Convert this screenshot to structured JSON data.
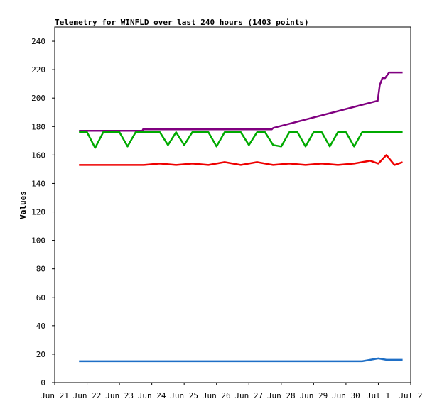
{
  "chart_data": {
    "type": "line",
    "title": "Telemetry for WINFLD over last 240 hours (1403 points)",
    "ylabel": "Values",
    "xlabel": "",
    "ylim": [
      0,
      250
    ],
    "yticks": [
      0,
      20,
      40,
      60,
      80,
      100,
      120,
      140,
      160,
      180,
      200,
      220,
      240
    ],
    "xlim": [
      "2024-06-21",
      "2024-07-02"
    ],
    "xticks": [
      {
        "date": "2024-06-21",
        "label": "Jun 21"
      },
      {
        "date": "2024-06-22",
        "label": "Jun 22"
      },
      {
        "date": "2024-06-23",
        "label": "Jun 23"
      },
      {
        "date": "2024-06-24",
        "label": "Jun 24"
      },
      {
        "date": "2024-06-25",
        "label": "Jun 25"
      },
      {
        "date": "2024-06-26",
        "label": "Jun 26"
      },
      {
        "date": "2024-06-27",
        "label": "Jun 27"
      },
      {
        "date": "2024-06-28",
        "label": "Jun 28"
      },
      {
        "date": "2024-06-29",
        "label": "Jun 29"
      },
      {
        "date": "2024-06-30",
        "label": "Jun 30"
      },
      {
        "date": "2024-07-01",
        "label": "Jul 1"
      },
      {
        "date": "2024-07-02",
        "label": "Jul 2"
      }
    ],
    "grid": false,
    "legend": "none",
    "series": [
      {
        "color": "#800080",
        "x": [
          "2024-06-21T18:00",
          "2024-06-23T17:00",
          "2024-06-23T17:30",
          "2024-06-27T17:00",
          "2024-06-27T18:00",
          "2024-06-30T23:00",
          "2024-06-30T23:30",
          "2024-07-01T01:00",
          "2024-07-01T03:00",
          "2024-07-01T05:00",
          "2024-07-01T08:00",
          "2024-07-01T18:00"
        ],
        "y": [
          177,
          177,
          178,
          178,
          179,
          198,
          198,
          209,
          214,
          214,
          218,
          218
        ]
      },
      {
        "color": "#00aa00",
        "x": [
          "2024-06-21T18:00",
          "2024-06-22T00:00",
          "2024-06-22T06:00",
          "2024-06-22T12:00",
          "2024-06-22T18:00",
          "2024-06-23T00:00",
          "2024-06-23T06:00",
          "2024-06-23T12:00",
          "2024-06-23T18:00",
          "2024-06-24T00:00",
          "2024-06-24T06:00",
          "2024-06-24T12:00",
          "2024-06-24T18:00",
          "2024-06-25T00:00",
          "2024-06-25T06:00",
          "2024-06-25T12:00",
          "2024-06-25T18:00",
          "2024-06-26T00:00",
          "2024-06-26T06:00",
          "2024-06-26T12:00",
          "2024-06-26T18:00",
          "2024-06-27T00:00",
          "2024-06-27T06:00",
          "2024-06-27T12:00",
          "2024-06-27T18:00",
          "2024-06-28T00:00",
          "2024-06-28T06:00",
          "2024-06-28T12:00",
          "2024-06-28T18:00",
          "2024-06-29T00:00",
          "2024-06-29T06:00",
          "2024-06-29T12:00",
          "2024-06-29T18:00",
          "2024-06-30T00:00",
          "2024-06-30T06:00",
          "2024-06-30T12:00",
          "2024-06-30T18:00",
          "2024-07-01T00:00",
          "2024-07-01T06:00",
          "2024-07-01T12:00",
          "2024-07-01T18:00"
        ],
        "y": [
          176,
          176,
          165,
          176,
          176,
          176,
          166,
          176,
          176,
          176,
          176,
          167,
          176,
          167,
          176,
          176,
          176,
          166,
          176,
          176,
          176,
          167,
          176,
          176,
          167,
          166,
          176,
          176,
          166,
          176,
          176,
          166,
          176,
          176,
          166,
          176,
          176,
          176,
          176,
          176,
          176
        ]
      },
      {
        "color": "#ee0000",
        "x": [
          "2024-06-21T18:00",
          "2024-06-22T06:00",
          "2024-06-22T18:00",
          "2024-06-23T06:00",
          "2024-06-23T18:00",
          "2024-06-24T06:00",
          "2024-06-24T18:00",
          "2024-06-25T06:00",
          "2024-06-25T18:00",
          "2024-06-26T06:00",
          "2024-06-26T18:00",
          "2024-06-27T06:00",
          "2024-06-27T18:00",
          "2024-06-28T06:00",
          "2024-06-28T18:00",
          "2024-06-29T06:00",
          "2024-06-29T18:00",
          "2024-06-30T06:00",
          "2024-06-30T18:00",
          "2024-07-01T00:00",
          "2024-07-01T06:00",
          "2024-07-01T12:00",
          "2024-07-01T18:00"
        ],
        "y": [
          153,
          153,
          153,
          153,
          153,
          154,
          153,
          154,
          153,
          155,
          153,
          155,
          153,
          154,
          153,
          154,
          153,
          154,
          156,
          154,
          160,
          153,
          155
        ]
      },
      {
        "color": "#1f6fc6",
        "x": [
          "2024-06-21T18:00",
          "2024-06-22T12:00",
          "2024-06-23T12:00",
          "2024-06-24T12:00",
          "2024-06-25T12:00",
          "2024-06-26T12:00",
          "2024-06-27T12:00",
          "2024-06-28T12:00",
          "2024-06-29T12:00",
          "2024-06-30T12:00",
          "2024-07-01T00:00",
          "2024-07-01T06:00",
          "2024-07-01T18:00"
        ],
        "y": [
          15,
          15,
          15,
          15,
          15,
          15,
          15,
          15,
          15,
          15,
          17,
          16,
          16
        ]
      },
      {
        "color": "#000000",
        "x": [
          "2024-06-21T18:00",
          "2024-07-01T18:00"
        ],
        "y": [
          0,
          0
        ]
      }
    ]
  }
}
